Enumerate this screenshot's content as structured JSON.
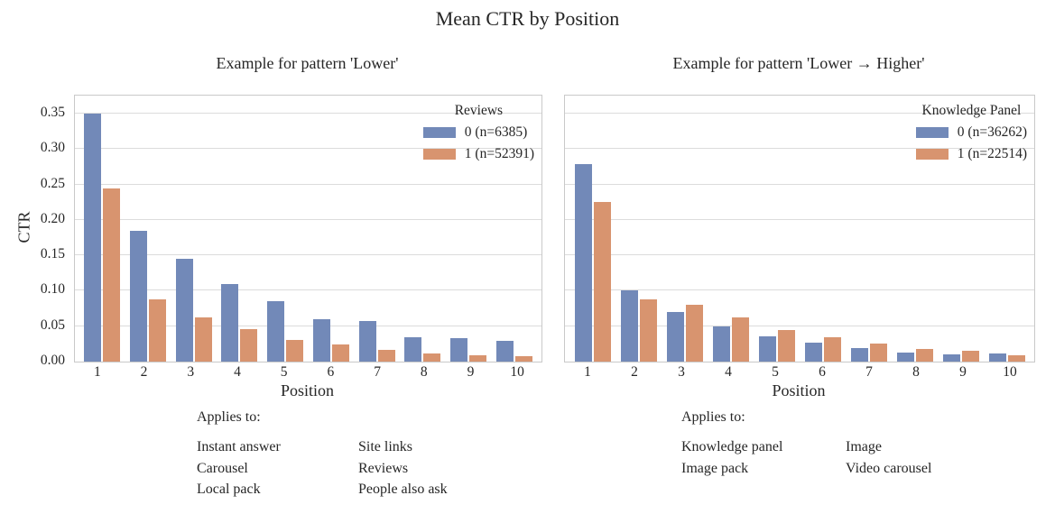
{
  "title": "Mean CTR by Position",
  "colors": {
    "blue": "#7289b8",
    "orange": "#d8946f",
    "grid": "#dcdcdc",
    "spine": "#c9c9c9",
    "text": "#262626"
  },
  "chart_data": [
    {
      "type": "bar",
      "title": "Example for pattern 'Lower'",
      "legend_title": "Reviews",
      "legend_position": "upper right",
      "xlabel": "Position",
      "ylabel": "CTR",
      "grid": true,
      "show_y_tick_labels": true,
      "ylim": [
        0,
        0.3755
      ],
      "yticks": [
        "0.00",
        "0.05",
        "0.10",
        "0.15",
        "0.20",
        "0.25",
        "0.30",
        "0.35"
      ],
      "categories": [
        "1",
        "2",
        "3",
        "4",
        "5",
        "6",
        "7",
        "8",
        "9",
        "10"
      ],
      "series": [
        {
          "name": "0 (n=6385)",
          "color_key": "blue",
          "values": [
            0.35,
            0.185,
            0.145,
            0.11,
            0.085,
            0.06,
            0.057,
            0.035,
            0.033,
            0.029
          ]
        },
        {
          "name": "1 (n=52391)",
          "color_key": "orange",
          "values": [
            0.244,
            0.088,
            0.062,
            0.046,
            0.03,
            0.024,
            0.017,
            0.011,
            0.009,
            0.008
          ]
        }
      ],
      "applies_to": {
        "label": "Applies to:",
        "columns": [
          [
            "Instant answer",
            "Carousel",
            "Local pack"
          ],
          [
            "Site links",
            "Reviews",
            "People also ask"
          ]
        ]
      }
    },
    {
      "type": "bar",
      "title": "Example for pattern 'Lower → Higher'",
      "legend_title": "Knowledge Panel",
      "legend_position": "upper right",
      "xlabel": "Position",
      "ylabel": "",
      "grid": true,
      "show_y_tick_labels": false,
      "ylim": [
        0,
        0.3755
      ],
      "yticks": [
        "0.00",
        "0.05",
        "0.10",
        "0.15",
        "0.20",
        "0.25",
        "0.30",
        "0.35"
      ],
      "categories": [
        "1",
        "2",
        "3",
        "4",
        "5",
        "6",
        "7",
        "8",
        "9",
        "10"
      ],
      "series": [
        {
          "name": "0 (n=36262)",
          "color_key": "blue",
          "values": [
            0.279,
            0.101,
            0.07,
            0.05,
            0.036,
            0.027,
            0.019,
            0.013,
            0.01,
            0.011
          ]
        },
        {
          "name": "1 (n=22514)",
          "color_key": "orange",
          "values": [
            0.225,
            0.088,
            0.08,
            0.062,
            0.045,
            0.035,
            0.026,
            0.018,
            0.015,
            0.009
          ]
        }
      ],
      "applies_to": {
        "label": "Applies to:",
        "columns": [
          [
            "Knowledge panel",
            "Image pack"
          ],
          [
            "Image",
            "Video carousel"
          ]
        ]
      }
    }
  ]
}
